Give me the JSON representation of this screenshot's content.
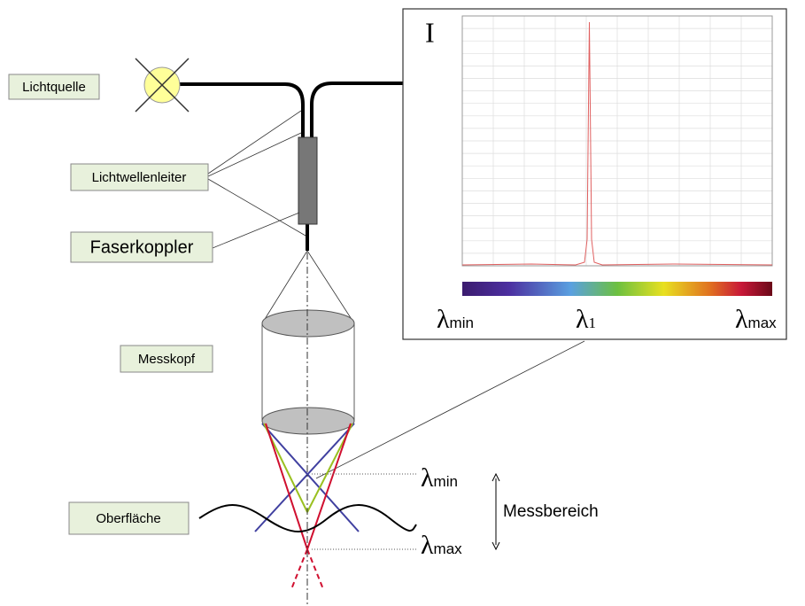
{
  "labels": {
    "light_source": "Lichtquelle",
    "fiber": "Lichtwellenleiter",
    "coupler": "Faserkoppler",
    "head": "Messkopf",
    "surface": "Oberfläche",
    "range": "Messbereich"
  },
  "range_marks": {
    "min": {
      "symbol": "λ",
      "sub": "min"
    },
    "max": {
      "symbol": "λ",
      "sub": "max"
    }
  },
  "spectrum": {
    "intensity_label": "I",
    "min": {
      "symbol": "λ",
      "sub": "min"
    },
    "peak": {
      "symbol": "λ",
      "sub": "1"
    },
    "max": {
      "symbol": "λ",
      "sub": "max"
    }
  }
}
